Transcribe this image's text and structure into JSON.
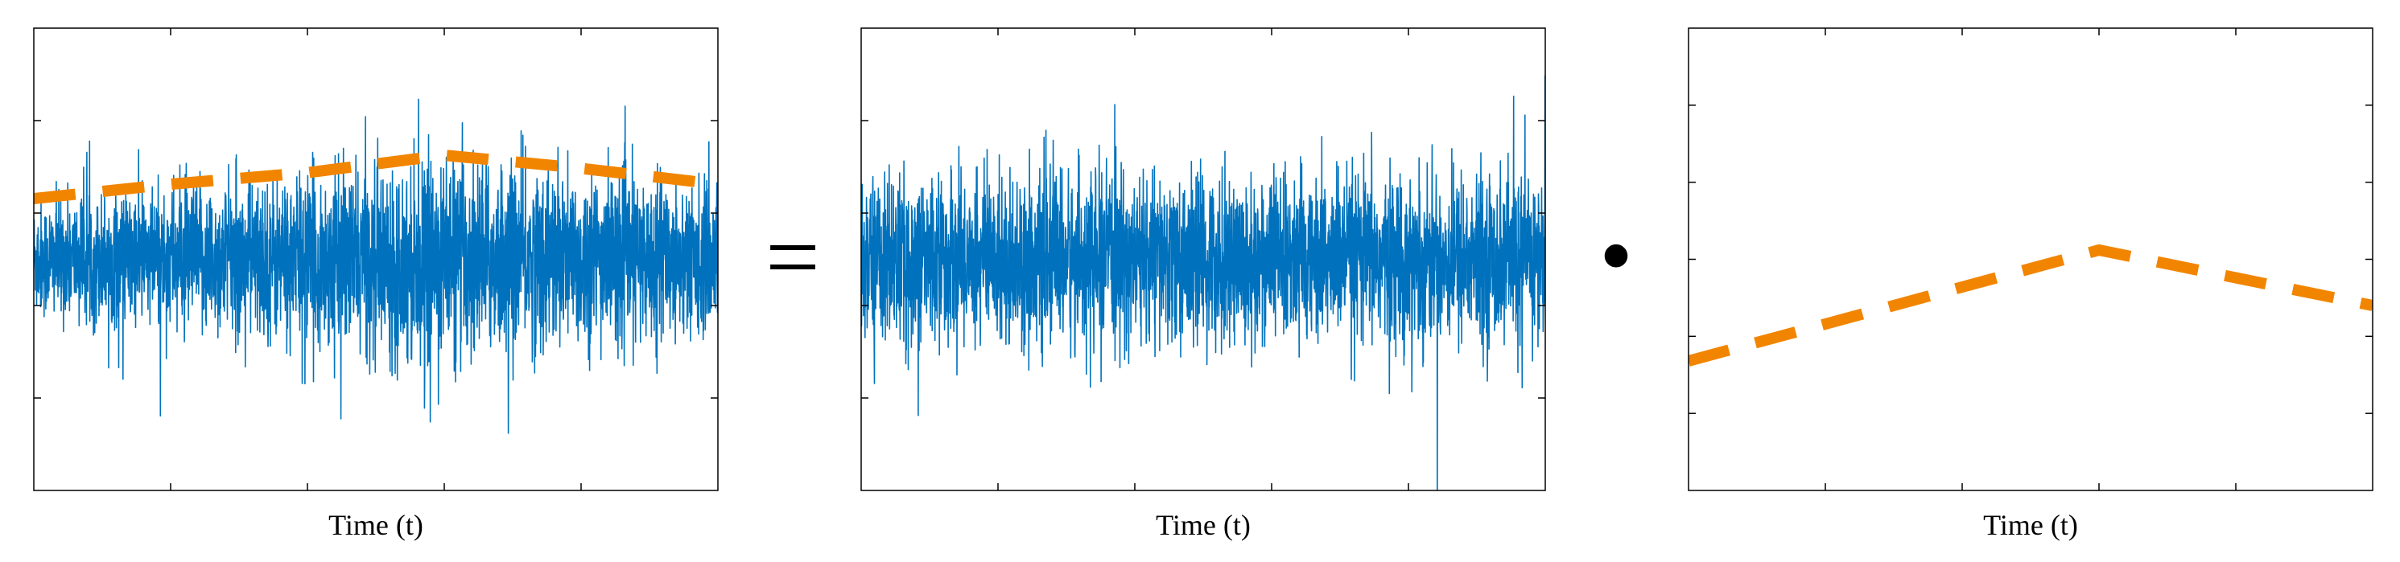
{
  "equation": {
    "equals_symbol": "=",
    "multiply_symbol": "•"
  },
  "colors": {
    "signal": "#0072BD",
    "envelope": "#F28500",
    "axes": "#000000"
  },
  "chart_data": [
    {
      "type": "line",
      "title": "",
      "xlabel": "Time (t)",
      "ylabel": "",
      "xlim": [
        0,
        1
      ],
      "ylim": [
        -1.6,
        1.6
      ],
      "grid": false,
      "legend": "none",
      "series": [
        {
          "style": "noise",
          "color": "#0072BD",
          "sigma": 0.28,
          "modulated": true
        },
        {
          "style": "dashed",
          "color": "#F28500",
          "x": [
            0,
            0.2,
            0.4,
            0.6,
            0.78,
            1.0
          ],
          "y": [
            0.42,
            0.52,
            0.6,
            0.72,
            0.64,
            0.52
          ]
        }
      ]
    },
    {
      "type": "line",
      "title": "",
      "xlabel": "Time (t)",
      "ylabel": "",
      "xlim": [
        0,
        1
      ],
      "ylim": [
        -1.6,
        1.6
      ],
      "grid": false,
      "legend": "none",
      "series": [
        {
          "style": "noise",
          "color": "#0072BD",
          "sigma": 0.28,
          "modulated": false
        }
      ]
    },
    {
      "type": "line",
      "title": "",
      "xlabel": "Time (t)",
      "ylabel": "",
      "xlim": [
        0,
        1
      ],
      "ylim": [
        -0.2,
        1.05
      ],
      "grid": false,
      "legend": "none",
      "series": [
        {
          "style": "dashed",
          "color": "#F28500",
          "x": [
            0,
            0.6,
            1.0
          ],
          "y": [
            0.15,
            0.45,
            0.3
          ]
        }
      ]
    }
  ]
}
